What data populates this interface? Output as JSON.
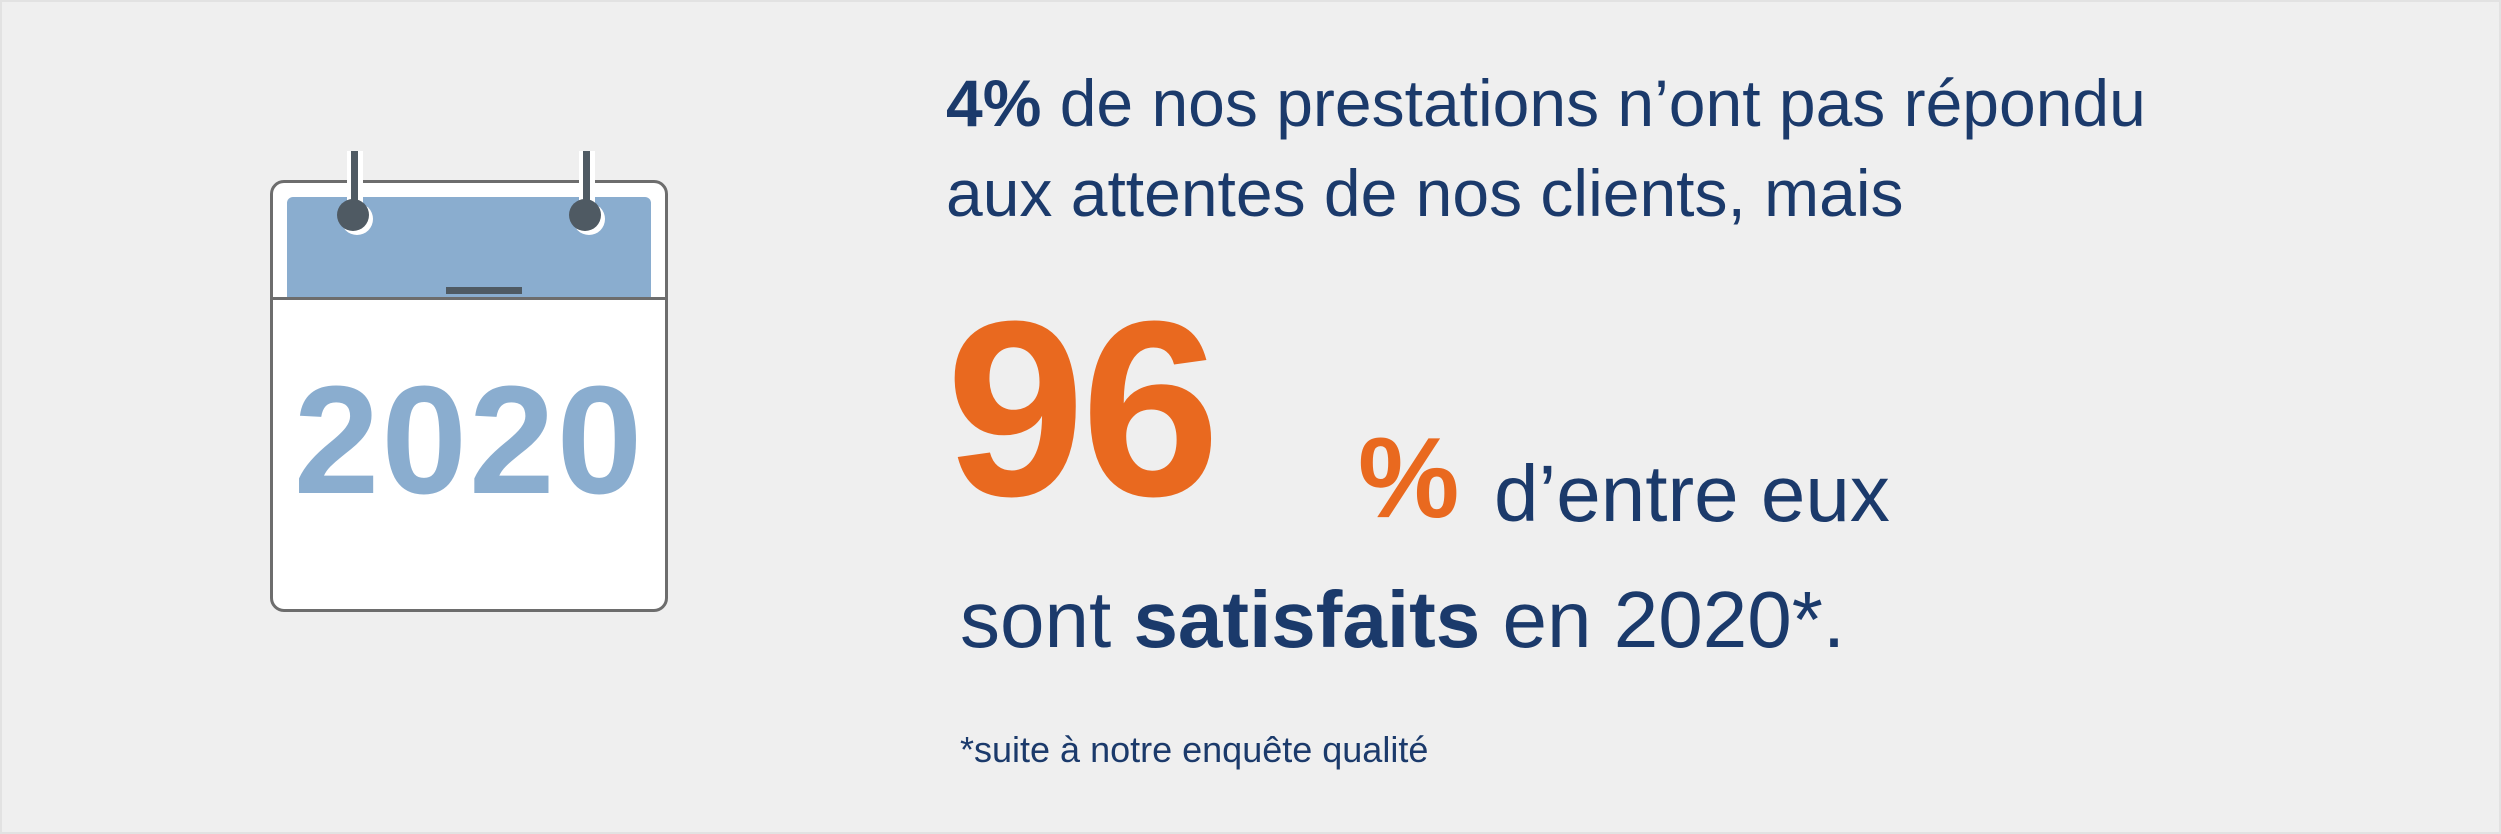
{
  "calendar": {
    "year": "2020"
  },
  "headline": {
    "highlight": "4%",
    "line1_rest": " de nos prestations n’ont pas répondu",
    "line2": "aux attentes de nos clients, mais"
  },
  "stat": {
    "number": "96",
    "percent_sign": "%",
    "entre": "d’entre eux"
  },
  "conclusion": {
    "prefix": "sont ",
    "bold": "satisfaits",
    "suffix": " en 2020*."
  },
  "footnote": "*suite à notre enquête qualité",
  "colors": {
    "background": "#efefef",
    "navy_text": "#1b3a6b",
    "orange_accent": "#e9691f",
    "calendar_blue": "#8aadcf",
    "calendar_dark": "#4f5a63"
  }
}
